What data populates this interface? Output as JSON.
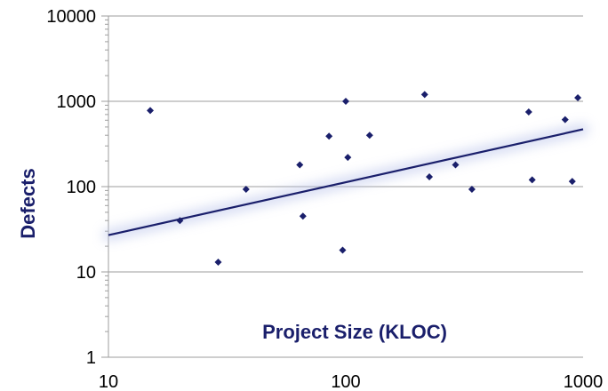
{
  "chart_data": {
    "type": "scatter",
    "title": "",
    "xlabel": "Project Size (KLOC)",
    "ylabel": "Defects",
    "x_scale": "log",
    "y_scale": "log",
    "xlim": [
      10,
      1000
    ],
    "ylim": [
      1,
      10000
    ],
    "x_ticks": [
      "10",
      "100",
      "1000"
    ],
    "y_ticks": [
      "1",
      "10",
      "100",
      "1000",
      "10000"
    ],
    "grid": "horizontal",
    "legend": "none",
    "colors": {
      "points": "#1a1f6b",
      "trendline": "#1a1f6b",
      "grid": "#9e9e9e"
    },
    "series": [
      {
        "points": [
          {
            "x": 15,
            "y": 780
          },
          {
            "x": 20,
            "y": 40
          },
          {
            "x": 29,
            "y": 13
          },
          {
            "x": 38,
            "y": 93
          },
          {
            "x": 64,
            "y": 180
          },
          {
            "x": 66,
            "y": 45
          },
          {
            "x": 85,
            "y": 390
          },
          {
            "x": 97,
            "y": 18
          },
          {
            "x": 100,
            "y": 1000
          },
          {
            "x": 102,
            "y": 220
          },
          {
            "x": 126,
            "y": 400
          },
          {
            "x": 215,
            "y": 1200
          },
          {
            "x": 225,
            "y": 130
          },
          {
            "x": 290,
            "y": 180
          },
          {
            "x": 340,
            "y": 93
          },
          {
            "x": 590,
            "y": 750
          },
          {
            "x": 610,
            "y": 120
          },
          {
            "x": 840,
            "y": 610
          },
          {
            "x": 900,
            "y": 115
          },
          {
            "x": 950,
            "y": 1100
          }
        ]
      }
    ],
    "trendline": {
      "type": "power",
      "from": {
        "x": 10,
        "y": 27
      },
      "to": {
        "x": 1000,
        "y": 470
      }
    }
  }
}
